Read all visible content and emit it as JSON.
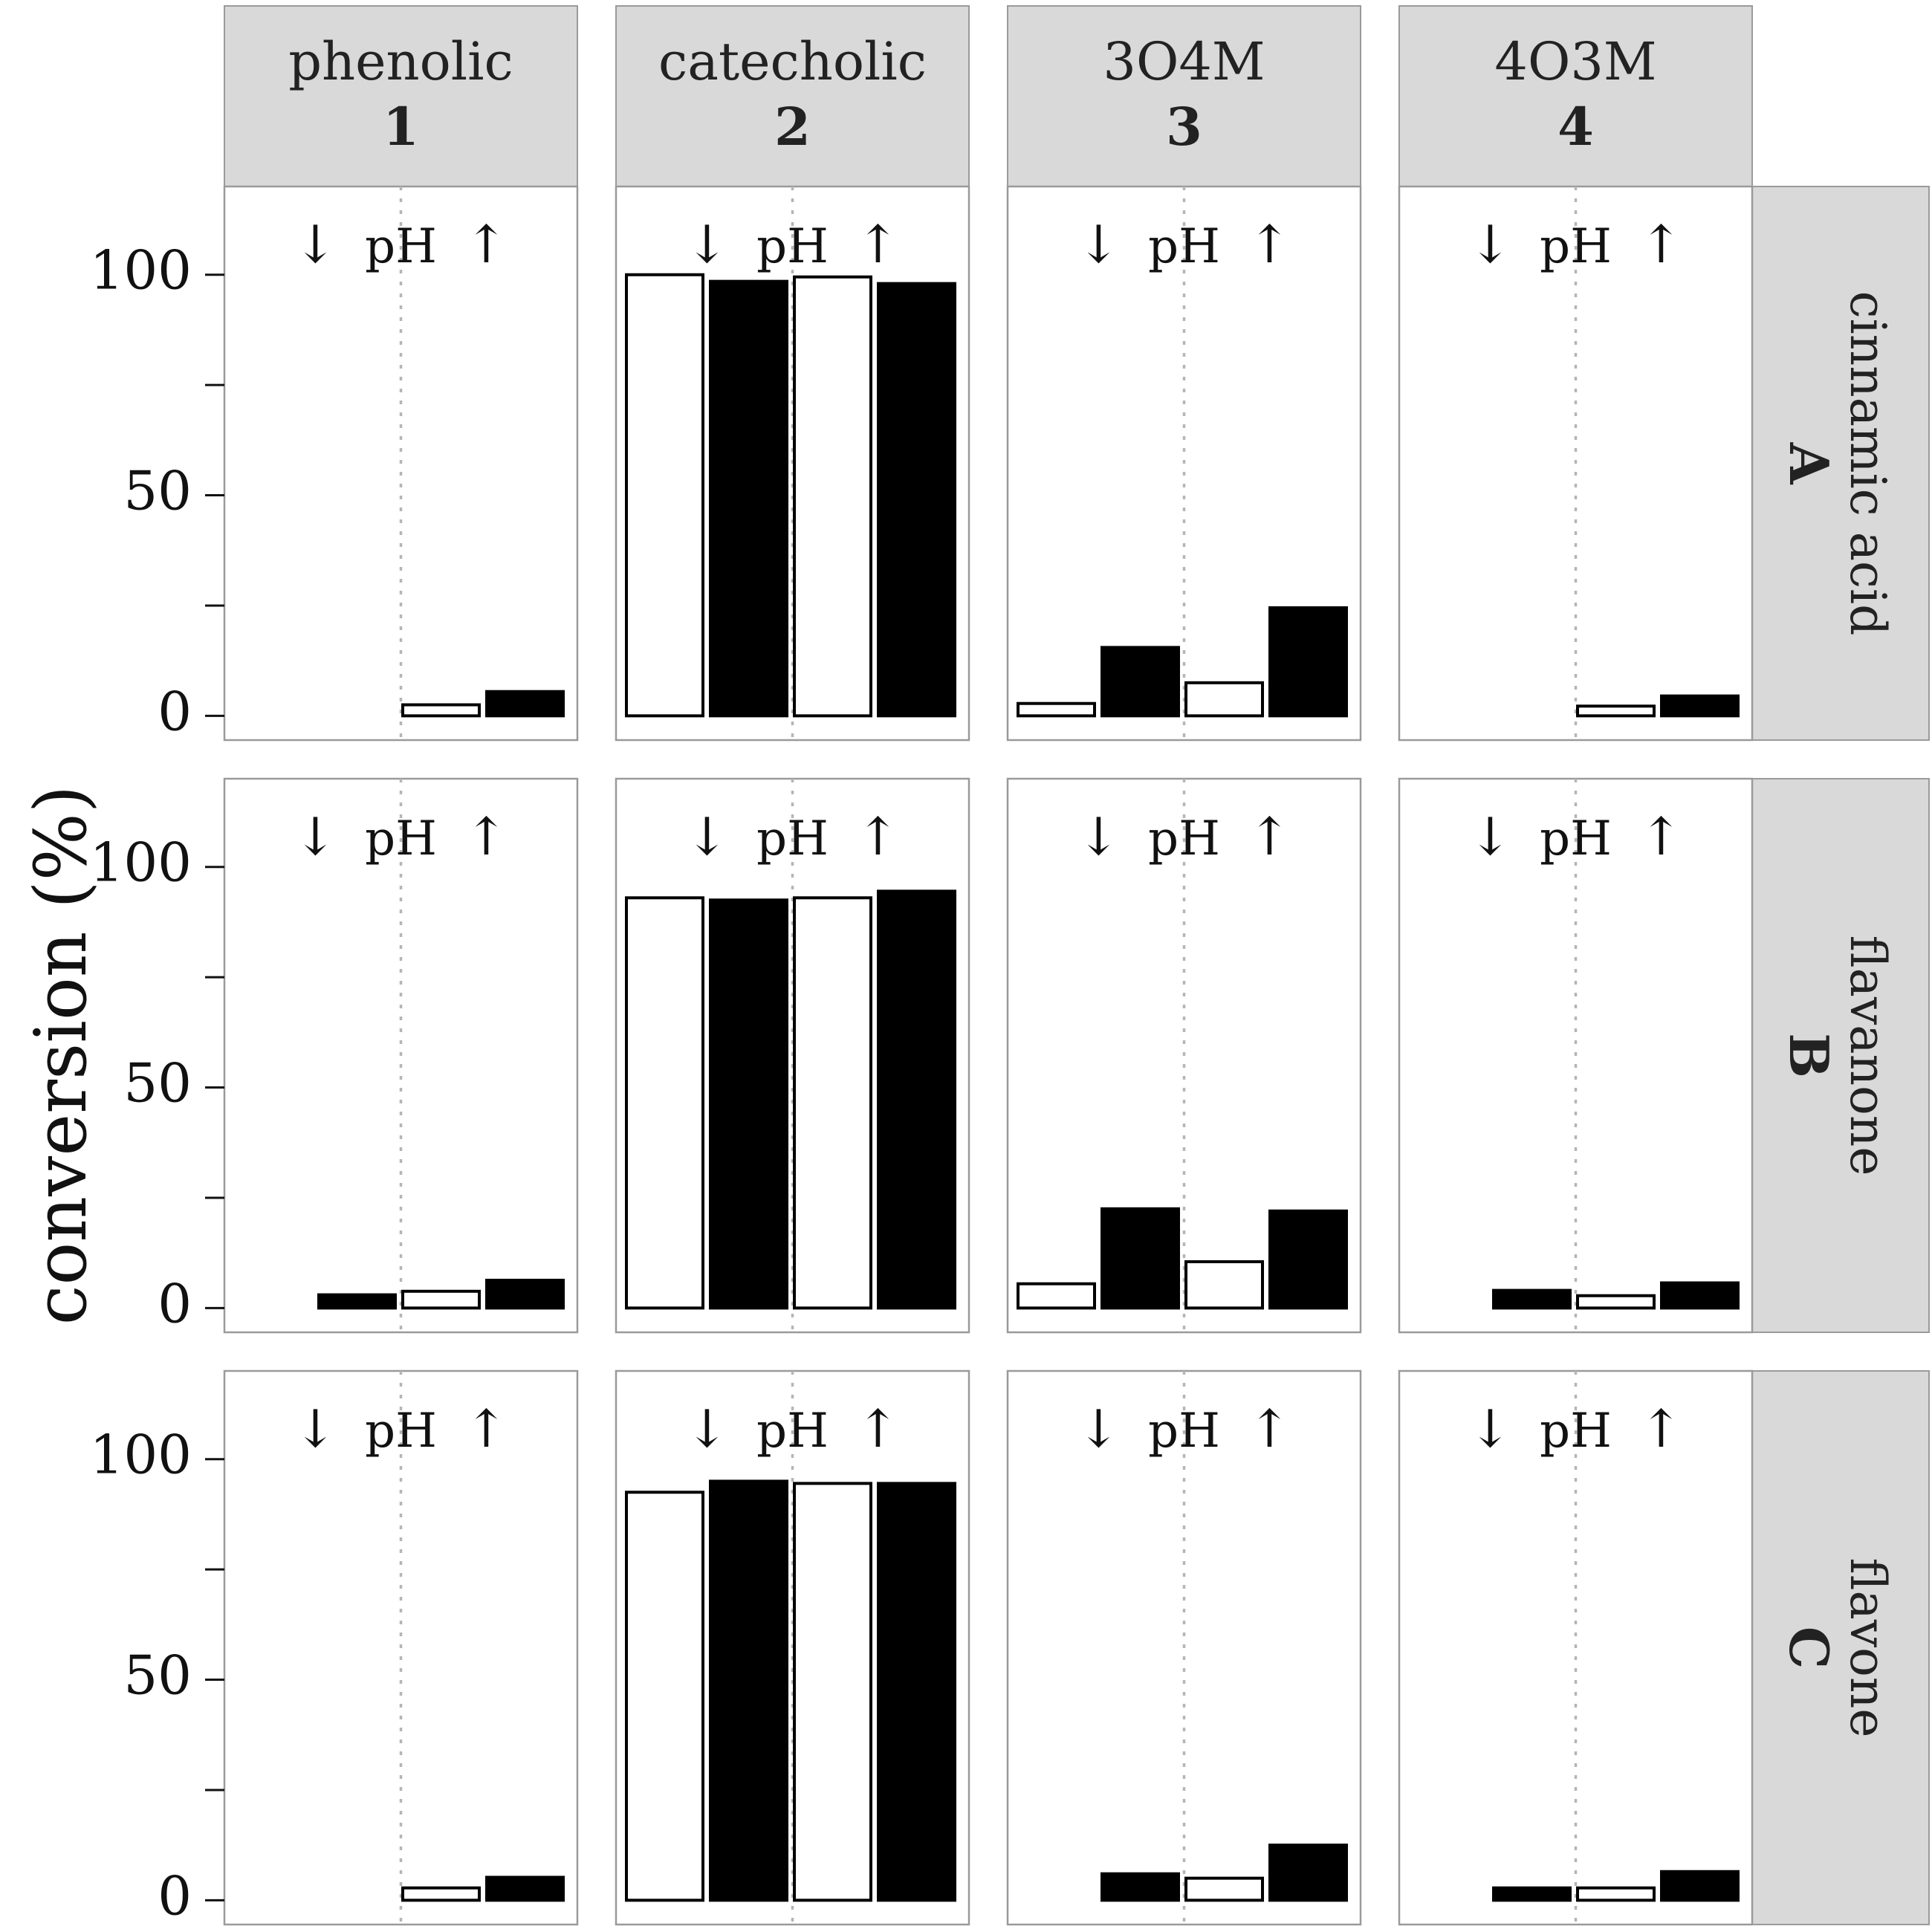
{
  "chart_data": {
    "type": "bar",
    "ylabel": "conversion (%)",
    "ylim": [
      -5.5,
      120
    ],
    "y_ticks": [
      0,
      50,
      100
    ],
    "y_tick_labels": [
      "0",
      "50",
      "100"
    ],
    "grid": false,
    "columns": [
      {
        "name": "phenolic",
        "number": "1"
      },
      {
        "name": "catecholic",
        "number": "2"
      },
      {
        "name": "3O4M",
        "number": "3"
      },
      {
        "name": "4O3M",
        "number": "4"
      }
    ],
    "rows": [
      {
        "letter": "A",
        "name": "cinnamic acid"
      },
      {
        "letter": "B",
        "name": "flavanone"
      },
      {
        "letter": "C",
        "name": "flavone"
      }
    ],
    "annotation": {
      "down": "↓",
      "label": "pH",
      "up": "↑"
    },
    "bar_fills": [
      "#ffffff",
      "#000000",
      "#ffffff",
      "#000000"
    ],
    "values": [
      [
        [
          0,
          0,
          2.5,
          5.5
        ],
        [
          100,
          98.5,
          99.5,
          98
        ],
        [
          2.8,
          15.5,
          7.5,
          24.5
        ],
        [
          0,
          0,
          2.2,
          4.5
        ]
      ],
      [
        [
          0,
          3,
          3.8,
          6.3
        ],
        [
          93,
          92.5,
          93,
          94.5
        ],
        [
          5.5,
          22.5,
          10.5,
          22
        ],
        [
          0,
          4,
          2.8,
          5.7
        ]
      ],
      [
        [
          0,
          0,
          2.8,
          5.2
        ],
        [
          92.5,
          95,
          94.5,
          94.5
        ],
        [
          0,
          6,
          5,
          12.5
        ],
        [
          0,
          2.8,
          2.8,
          6.5
        ]
      ]
    ]
  }
}
